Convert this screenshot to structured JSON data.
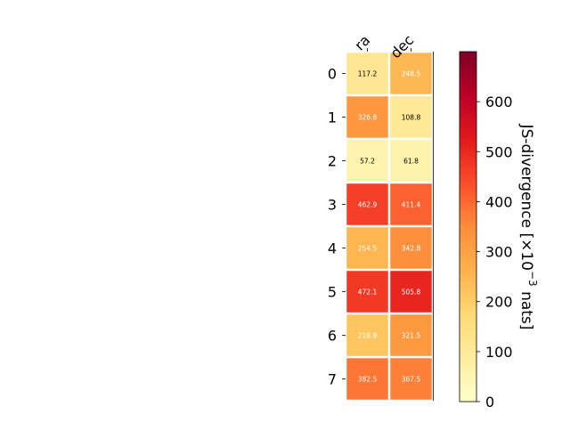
{
  "chart_data": {
    "type": "heatmap",
    "columns": [
      "ra",
      "dec"
    ],
    "rows": [
      "0",
      "1",
      "2",
      "3",
      "4",
      "5",
      "6",
      "7"
    ],
    "values": [
      [
        117.2,
        248.5
      ],
      [
        326.8,
        108.8
      ],
      [
        57.2,
        61.8
      ],
      [
        462.9,
        411.4
      ],
      [
        254.5,
        342.8
      ],
      [
        472.1,
        505.8
      ],
      [
        218.9,
        321.5
      ],
      [
        382.5,
        367.5
      ]
    ],
    "cell_labels": [
      [
        "117.2",
        "248.5"
      ],
      [
        "326.8",
        "108.8"
      ],
      [
        "57.2",
        "61.8"
      ],
      [
        "462.9",
        "411.4"
      ],
      [
        "254.5",
        "342.8"
      ],
      [
        "472.1",
        "505.8"
      ],
      [
        "218.9",
        "321.5"
      ],
      [
        "382.5",
        "367.5"
      ]
    ],
    "colorbar": {
      "label_main": "JS-divergence [×10",
      "label_exp": "−3",
      "label_tail": " nats]",
      "range": [
        0,
        700
      ],
      "ticks": [
        "0",
        "100",
        "200",
        "300",
        "400",
        "500",
        "600"
      ],
      "colormap": "YlOrRd"
    },
    "grid": false,
    "legend": "none"
  }
}
